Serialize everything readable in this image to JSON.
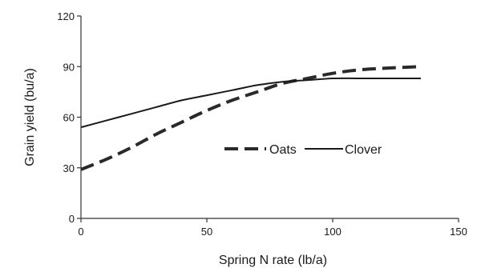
{
  "chart_data": {
    "type": "line",
    "xlabel": "Spring N rate (lb/a)",
    "ylabel": "Grain yield (bu/a)",
    "xlim": [
      0,
      150
    ],
    "ylim": [
      0,
      120
    ],
    "xticks": [
      "0",
      "50",
      "100",
      "150"
    ],
    "yticks": [
      "0",
      "30",
      "60",
      "90",
      "120"
    ],
    "grid": false,
    "legend_position": "center-right",
    "series": [
      {
        "name": "Oats",
        "style": "dashed",
        "color": "#2a2a2a",
        "x": [
          0,
          10,
          20,
          30,
          40,
          50,
          60,
          70,
          80,
          90,
          100,
          110,
          120,
          135
        ],
        "y": [
          29,
          35,
          42,
          50,
          57,
          64,
          70,
          75,
          80,
          83,
          86,
          88,
          89,
          90
        ]
      },
      {
        "name": "Clover",
        "style": "solid",
        "color": "#1a1a1a",
        "x": [
          0,
          10,
          20,
          30,
          40,
          50,
          60,
          70,
          80,
          90,
          100,
          110,
          120,
          135
        ],
        "y": [
          54,
          58,
          62,
          66,
          70,
          73,
          76,
          79,
          81,
          82,
          83,
          83,
          83,
          83
        ]
      }
    ]
  }
}
